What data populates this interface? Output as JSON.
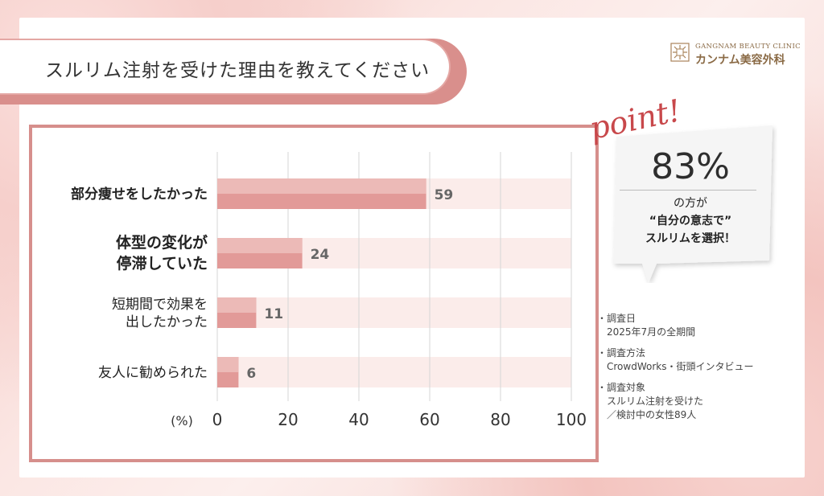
{
  "title": "スルリム注射を受けた理由を教えてください",
  "logo": {
    "en": "GANGNAM BEAUTY CLINIC",
    "ja": "カンナム美容外科"
  },
  "chart_data": {
    "type": "bar",
    "orientation": "horizontal",
    "categories": [
      [
        "部分痩せをしたかった"
      ],
      [
        "体型の変化が",
        "停滞していた"
      ],
      [
        "短期間で効果を",
        "出したかった"
      ],
      [
        "友人に勧められた"
      ]
    ],
    "values": [
      59,
      24,
      11,
      6
    ],
    "xlim": [
      0,
      100
    ],
    "xticks": [
      "0",
      "20",
      "40",
      "60",
      "80",
      "100"
    ],
    "xunit": "(%)",
    "grid": true,
    "colors": {
      "bar": "#e29a98",
      "bar_light": "#ecbab7",
      "track": "#fbecea",
      "grid": "#d6d6d6"
    }
  },
  "point": {
    "label": "point!",
    "percent": "83%",
    "line1": "の方が",
    "line2": "“自分の意志で”",
    "line3": "スルリムを選択！"
  },
  "info": [
    {
      "head": "・調査日",
      "body": [
        "2025年7月の全期間"
      ]
    },
    {
      "head": "・調査方法",
      "body": [
        "CrowdWorks・街頭インタビュー"
      ]
    },
    {
      "head": "・調査対象",
      "body": [
        "スルリム注射を受けた",
        "／検討中の女性89人"
      ]
    }
  ]
}
